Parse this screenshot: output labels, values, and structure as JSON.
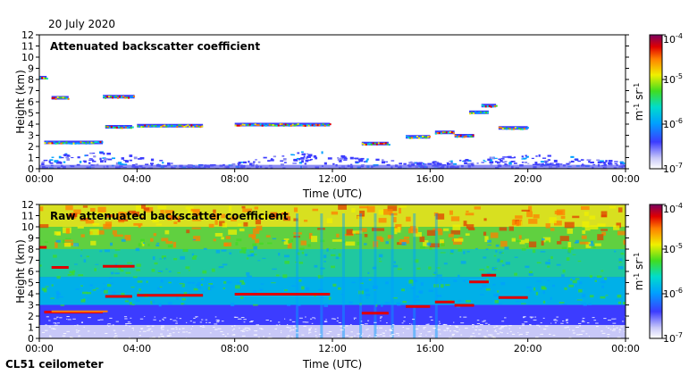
{
  "date": "20 July 2020",
  "instrument": "CL51 ceilometer",
  "chart_data": [
    {
      "type": "heatmap",
      "title": "Attenuated backscatter coefficient",
      "xlabel": "Time (UTC)",
      "ylabel": "Height (km)",
      "xticks": [
        "00:00",
        "04:00",
        "08:00",
        "12:00",
        "16:00",
        "20:00",
        "00:00"
      ],
      "xlim_hours": [
        0,
        24
      ],
      "ylim": [
        0,
        12
      ],
      "yticks": [
        0,
        1,
        2,
        3,
        4,
        5,
        6,
        7,
        8,
        9,
        10,
        11,
        12
      ],
      "colorbar": {
        "label": "m-1 sr-1",
        "scale": "log",
        "range": [
          1e-07,
          0.0001
        ],
        "ticks": [
          "10-7",
          "10-6",
          "10-5",
          "10-4"
        ]
      },
      "layers": [
        {
          "t0": 0.0,
          "t1": 0.3,
          "h": 8.2
        },
        {
          "t0": 0.5,
          "t1": 1.2,
          "h": 6.4
        },
        {
          "t0": 0.2,
          "t1": 2.6,
          "h": 2.4
        },
        {
          "t0": 2.6,
          "t1": 3.9,
          "h": 6.5
        },
        {
          "t0": 2.7,
          "t1": 3.8,
          "h": 3.8
        },
        {
          "t0": 4.0,
          "t1": 6.7,
          "h": 3.9
        },
        {
          "t0": 8.0,
          "t1": 11.9,
          "h": 4.0
        },
        {
          "t0": 13.2,
          "t1": 14.3,
          "h": 2.3
        },
        {
          "t0": 15.0,
          "t1": 16.0,
          "h": 2.9
        },
        {
          "t0": 16.2,
          "t1": 17.0,
          "h": 3.3
        },
        {
          "t0": 17.0,
          "t1": 17.8,
          "h": 3.0
        },
        {
          "t0": 17.6,
          "t1": 18.4,
          "h": 5.1
        },
        {
          "t0": 18.1,
          "t1": 18.7,
          "h": 5.7
        },
        {
          "t0": 18.8,
          "t1": 20.0,
          "h": 3.7
        }
      ]
    },
    {
      "type": "heatmap",
      "title": "Raw attenuated backscatter coefficient",
      "xlabel": "Time (UTC)",
      "ylabel": "Height (km)",
      "xticks": [
        "00:00",
        "04:00",
        "08:00",
        "12:00",
        "16:00",
        "20:00",
        "00:00"
      ],
      "xlim_hours": [
        0,
        24
      ],
      "ylim": [
        0,
        12
      ],
      "yticks": [
        0,
        1,
        2,
        3,
        4,
        5,
        6,
        7,
        8,
        9,
        10,
        11,
        12
      ],
      "colorbar": {
        "label": "m-1 sr-1",
        "scale": "log",
        "range": [
          1e-07,
          0.0001
        ],
        "ticks": [
          "10-7",
          "10-6",
          "10-5",
          "10-4"
        ]
      }
    }
  ]
}
